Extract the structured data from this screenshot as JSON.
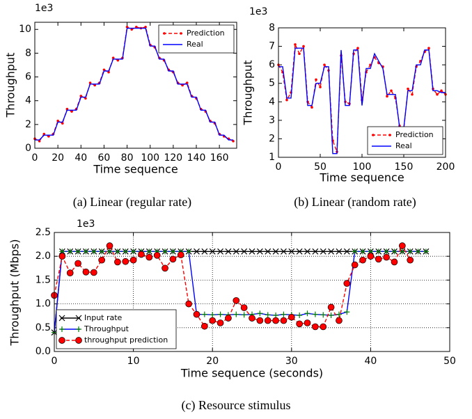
{
  "chart_data": [
    {
      "type": "line",
      "caption": "(a) Linear (regular rate)",
      "y_offset_label": "1e3",
      "x_label": "Time sequence",
      "y_label": "Throughput",
      "x": [
        0,
        4,
        8,
        12,
        16,
        20,
        24,
        28,
        32,
        36,
        40,
        44,
        48,
        52,
        56,
        60,
        64,
        68,
        72,
        76,
        80,
        84,
        88,
        92,
        96,
        100,
        104,
        108,
        112,
        116,
        120,
        124,
        128,
        132,
        136,
        140,
        144,
        148,
        152,
        156,
        160,
        164,
        168,
        172
      ],
      "series": [
        {
          "name": "Prediction",
          "color": "#ff0000",
          "dash": "dashed",
          "marker": "dot",
          "values": [
            0.8,
            0.6,
            1.2,
            1.0,
            1.2,
            2.3,
            2.1,
            3.3,
            3.1,
            3.3,
            4.4,
            4.2,
            5.5,
            5.3,
            5.5,
            6.6,
            6.4,
            7.6,
            7.4,
            7.6,
            10.2,
            10.0,
            10.2,
            10.1,
            10.2,
            8.7,
            8.5,
            7.6,
            7.4,
            6.6,
            6.4,
            5.5,
            5.3,
            5.5,
            4.4,
            4.2,
            3.3,
            3.1,
            2.3,
            2.1,
            1.2,
            1.0,
            0.8,
            0.6
          ]
        },
        {
          "name": "Real",
          "color": "#0000ff",
          "values": [
            0.7,
            0.7,
            1.1,
            1.1,
            1.1,
            2.2,
            2.2,
            3.2,
            3.2,
            3.2,
            4.3,
            4.3,
            5.4,
            5.4,
            5.4,
            6.5,
            6.5,
            7.5,
            7.5,
            7.5,
            10.1,
            10.1,
            10.1,
            10.1,
            10.1,
            8.6,
            8.6,
            7.5,
            7.5,
            6.5,
            6.5,
            5.4,
            5.4,
            5.4,
            4.3,
            4.3,
            3.2,
            3.2,
            2.2,
            2.2,
            1.1,
            1.1,
            0.7,
            0.7
          ]
        }
      ],
      "xlim": [
        0,
        175
      ],
      "ylim": [
        0,
        10.6
      ],
      "xticks": [
        0,
        20,
        40,
        60,
        80,
        100,
        120,
        140,
        160
      ],
      "yticks": [
        0,
        2,
        4,
        6,
        8,
        10
      ],
      "grid": false,
      "legend": "upper-right"
    },
    {
      "type": "line",
      "caption": "(b) Linear (random rate)",
      "y_offset_label": "1e3",
      "x_label": "Time sequence",
      "y_label": "Throughput",
      "x": [
        0,
        5,
        10,
        15,
        20,
        25,
        30,
        35,
        40,
        45,
        50,
        55,
        60,
        65,
        70,
        75,
        80,
        85,
        90,
        95,
        100,
        105,
        110,
        115,
        120,
        125,
        130,
        135,
        140,
        145,
        150,
        155,
        160,
        165,
        170,
        175,
        180,
        185,
        190,
        195,
        200
      ],
      "series": [
        {
          "name": "Prediction",
          "color": "#ff0000",
          "dash": "dashed",
          "marker": "dot",
          "values": [
            6.0,
            5.6,
            4.1,
            4.5,
            7.1,
            6.6,
            7.0,
            4.0,
            3.7,
            5.2,
            4.8,
            6.0,
            5.7,
            1.9,
            1.3,
            6.5,
            4.0,
            3.9,
            6.6,
            6.9,
            4.1,
            5.6,
            6.0,
            6.4,
            6.1,
            5.9,
            4.3,
            4.6,
            4.2,
            2.7,
            2.5,
            4.7,
            4.4,
            5.9,
            6.2,
            6.7,
            6.9,
            4.7,
            4.4,
            4.6,
            4.4
          ]
        },
        {
          "name": "Real",
          "color": "#0000ff",
          "values": [
            5.9,
            5.9,
            4.2,
            4.2,
            6.9,
            6.9,
            6.9,
            3.8,
            3.8,
            5.0,
            5.0,
            5.9,
            5.9,
            1.2,
            1.2,
            6.8,
            3.8,
            3.8,
            6.8,
            6.8,
            3.8,
            5.8,
            5.8,
            6.6,
            6.2,
            5.8,
            4.4,
            4.4,
            4.4,
            2.6,
            2.6,
            4.6,
            4.6,
            6.0,
            6.0,
            6.8,
            6.8,
            4.6,
            4.6,
            4.5,
            4.5
          ]
        }
      ],
      "xlim": [
        0,
        200
      ],
      "ylim": [
        1,
        8
      ],
      "xticks": [
        0,
        50,
        100,
        150,
        200
      ],
      "yticks": [
        1,
        2,
        3,
        4,
        5,
        6,
        7,
        8
      ],
      "grid": false,
      "legend": "lower-right"
    },
    {
      "type": "line",
      "caption": "(c) Resource stimulus",
      "y_offset_label": "1e3",
      "x_label": "Time sequence (seconds)",
      "y_label": "Throughput (Mbps)",
      "series": [
        {
          "name": "Input rate",
          "color": "#000000",
          "marker": "x",
          "x": [
            0,
            1,
            2,
            3,
            4,
            5,
            6,
            7,
            8,
            9,
            10,
            11,
            12,
            13,
            14,
            15,
            16,
            17,
            18,
            19,
            20,
            21,
            22,
            23,
            24,
            25,
            26,
            27,
            28,
            29,
            30,
            31,
            32,
            33,
            34,
            35,
            36,
            37,
            38,
            39,
            40,
            41,
            42,
            43,
            44,
            45,
            46,
            47
          ],
          "values": [
            0.4,
            2.1,
            2.1,
            2.1,
            2.1,
            2.1,
            2.1,
            2.1,
            2.1,
            2.1,
            2.1,
            2.1,
            2.1,
            2.1,
            2.1,
            2.1,
            2.1,
            2.1,
            2.1,
            2.1,
            2.1,
            2.1,
            2.1,
            2.1,
            2.1,
            2.1,
            2.1,
            2.1,
            2.1,
            2.1,
            2.1,
            2.1,
            2.1,
            2.1,
            2.1,
            2.1,
            2.1,
            2.1,
            2.1,
            2.1,
            2.1,
            2.1,
            2.1,
            2.1,
            2.1,
            2.1,
            2.1,
            2.1
          ]
        },
        {
          "name": "Throughput",
          "color": "#0000ff",
          "marker": "plus",
          "marker_color": "#008000",
          "x": [
            0,
            1,
            2,
            3,
            4,
            5,
            6,
            7,
            8,
            9,
            10,
            11,
            12,
            13,
            14,
            15,
            16,
            17,
            18,
            19,
            20,
            21,
            22,
            23,
            24,
            25,
            26,
            27,
            28,
            29,
            30,
            31,
            32,
            33,
            34,
            35,
            36,
            37,
            38,
            39,
            40,
            41,
            42,
            43,
            44,
            45,
            46,
            47
          ],
          "values": [
            0.4,
            2.1,
            2.1,
            2.1,
            2.1,
            2.1,
            2.1,
            2.1,
            2.1,
            2.1,
            2.1,
            2.1,
            2.1,
            2.1,
            2.1,
            2.1,
            2.1,
            2.1,
            0.78,
            0.78,
            0.77,
            0.78,
            0.77,
            0.78,
            0.77,
            0.78,
            0.8,
            0.77,
            0.76,
            0.78,
            0.77,
            0.76,
            0.8,
            0.78,
            0.77,
            0.76,
            0.78,
            0.83,
            2.1,
            2.1,
            2.1,
            2.1,
            2.1,
            2.1,
            2.1,
            2.1,
            2.1,
            2.1
          ]
        },
        {
          "name": "throughput prediction",
          "color": "#ff0000",
          "dash": "dashed",
          "marker": "circle",
          "x": [
            0,
            1,
            2,
            3,
            4,
            5,
            6,
            7,
            8,
            9,
            10,
            11,
            12,
            13,
            14,
            15,
            16,
            17,
            18,
            19,
            20,
            21,
            22,
            23,
            24,
            25,
            26,
            27,
            28,
            29,
            30,
            31,
            32,
            33,
            34,
            35,
            36,
            37,
            38,
            39,
            40,
            41,
            42,
            43,
            44,
            45
          ],
          "values": [
            1.18,
            2.0,
            1.65,
            1.85,
            1.67,
            1.66,
            1.92,
            2.22,
            1.88,
            1.89,
            1.92,
            2.04,
            1.98,
            2.02,
            1.75,
            1.94,
            2.03,
            1.0,
            0.78,
            0.53,
            0.65,
            0.6,
            0.7,
            1.07,
            0.92,
            0.7,
            0.65,
            0.65,
            0.65,
            0.65,
            0.72,
            0.58,
            0.6,
            0.52,
            0.52,
            0.93,
            0.65,
            1.43,
            1.82,
            1.92,
            2.0,
            1.94,
            1.98,
            1.88,
            2.22,
            1.92
          ]
        }
      ],
      "xlim": [
        0,
        50
      ],
      "ylim": [
        0,
        2.5
      ],
      "xticks": [
        0,
        10,
        20,
        30,
        40,
        50
      ],
      "yticks": [
        {
          "value": 0,
          "label": "0.0"
        },
        0.5,
        {
          "value": 1,
          "label": "1.0"
        },
        1.5,
        {
          "value": 2,
          "label": "2.0"
        },
        2.5
      ],
      "grid": true,
      "legend": "lower-left"
    }
  ]
}
